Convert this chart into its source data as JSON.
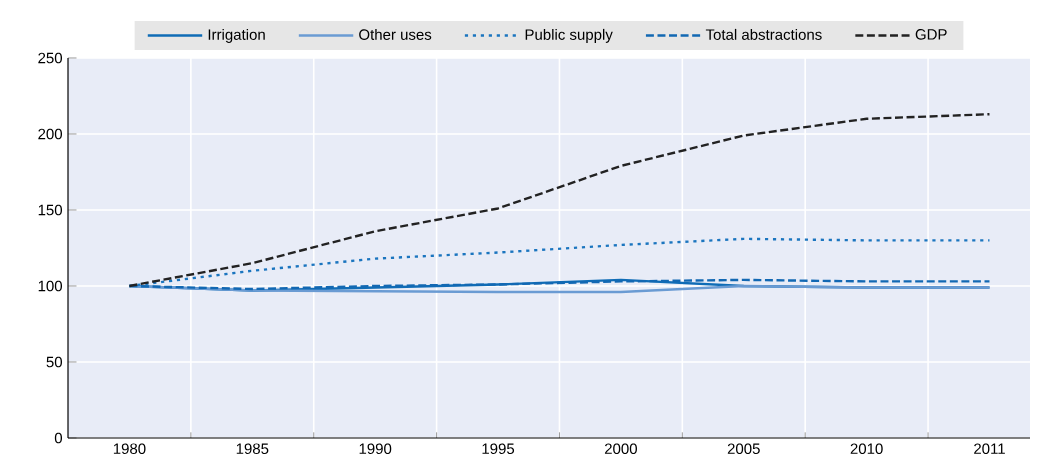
{
  "chart_data": {
    "type": "line",
    "categories": [
      "1980",
      "1985",
      "1990",
      "1995",
      "2000",
      "2005",
      "2010",
      "2011"
    ],
    "ylim": [
      0,
      250
    ],
    "yticks": [
      0,
      50,
      100,
      150,
      200,
      250
    ],
    "grid": true,
    "legend": "top",
    "series": [
      {
        "name": "Irrigation",
        "color": "#0f6cb6",
        "line_style": "solid",
        "values": [
          100,
          97,
          99,
          101,
          104,
          100,
          99,
          99
        ]
      },
      {
        "name": "Other uses",
        "color": "#6a9bd3",
        "line_style": "solid",
        "values": [
          100,
          97,
          96.5,
          96,
          96,
          100,
          99,
          99
        ]
      },
      {
        "name": "Public supply",
        "color": "#1b75bf",
        "line_style": "dotted",
        "values": [
          100,
          110,
          118,
          122,
          127,
          131,
          130,
          130
        ]
      },
      {
        "name": "Total abstractions",
        "color": "#1268b3",
        "line_style": "dashed",
        "values": [
          100,
          98,
          100,
          101,
          103,
          104,
          103,
          103
        ]
      },
      {
        "name": "GDP",
        "color": "#222222",
        "line_style": "dashed",
        "values": [
          100,
          115,
          136,
          151,
          179,
          199,
          210,
          213
        ]
      }
    ]
  }
}
